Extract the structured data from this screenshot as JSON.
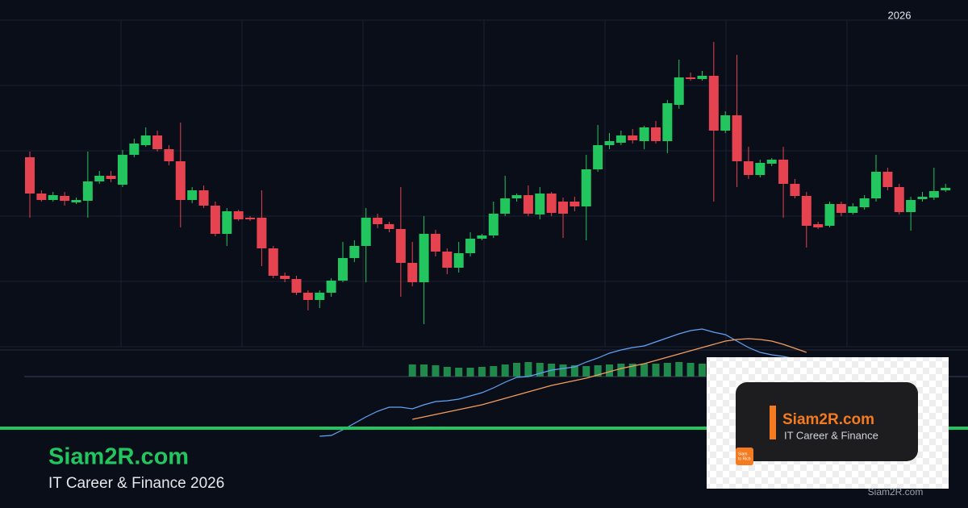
{
  "header_year": "2026",
  "chart_data": [
    {
      "type": "candlestick",
      "up_color": "#22c55e",
      "down_color": "#e5434f",
      "ylim": [
        0,
        405
      ],
      "yticks": [
        0,
        81,
        162,
        243,
        324,
        405
      ],
      "grid": true,
      "open": [
        235,
        190,
        182,
        187,
        179,
        181,
        205,
        212,
        201,
        238,
        250,
        262,
        245,
        230,
        182,
        194,
        175,
        140,
        168,
        160,
        160,
        122,
        88,
        84,
        67,
        58,
        67,
        82,
        110,
        125,
        160,
        152,
        146,
        104,
        80,
        140,
        118,
        98,
        116,
        134,
        138,
        165,
        184,
        188,
        164,
        190,
        180,
        180,
        174,
        220,
        250,
        253,
        262,
        255,
        272,
        255,
        300,
        334,
        332,
        336,
        268,
        287,
        230,
        213,
        227,
        232,
        202,
        187,
        152,
        150,
        177,
        166,
        173,
        184,
        217,
        198,
        167,
        183,
        185,
        194
      ],
      "high": [
        242,
        194,
        192,
        192,
        185,
        242,
        218,
        218,
        244,
        258,
        272,
        268,
        250,
        278,
        198,
        200,
        180,
        172,
        170,
        162,
        194,
        125,
        92,
        88,
        70,
        70,
        85,
        130,
        132,
        172,
        165,
        155,
        198,
        130,
        162,
        145,
        122,
        130,
        142,
        140,
        180,
        212,
        190,
        200,
        198,
        192,
        185,
        186,
        238,
        275,
        265,
        268,
        270,
        274,
        280,
        306,
        356,
        340,
        342,
        378,
        292,
        362,
        248,
        232,
        234,
        248,
        208,
        192,
        155,
        180,
        180,
        178,
        188,
        238,
        222,
        202,
        186,
        192,
        222,
        202
      ],
      "low": [
        160,
        180,
        180,
        175,
        177,
        160,
        202,
        204,
        198,
        235,
        248,
        242,
        225,
        148,
        178,
        172,
        137,
        125,
        156,
        156,
        100,
        85,
        80,
        64,
        45,
        48,
        62,
        80,
        105,
        80,
        147,
        142,
        62,
        75,
        28,
        112,
        90,
        92,
        112,
        132,
        135,
        162,
        180,
        162,
        158,
        162,
        135,
        168,
        132,
        217,
        245,
        250,
        252,
        245,
        252,
        240,
        295,
        330,
        330,
        180,
        265,
        198,
        208,
        210,
        224,
        160,
        184,
        123,
        146,
        148,
        162,
        164,
        170,
        180,
        194,
        164,
        144,
        180,
        182,
        192
      ],
      "close": [
        190,
        182,
        188,
        181,
        182,
        205,
        212,
        208,
        238,
        252,
        262,
        245,
        230,
        182,
        194,
        175,
        140,
        168,
        158,
        158,
        122,
        88,
        84,
        67,
        58,
        67,
        82,
        110,
        125,
        160,
        152,
        146,
        104,
        80,
        140,
        118,
        98,
        116,
        134,
        138,
        165,
        184,
        188,
        165,
        190,
        166,
        165,
        174,
        220,
        250,
        255,
        262,
        256,
        272,
        255,
        302,
        334,
        332,
        336,
        268,
        287,
        230,
        213,
        228,
        232,
        202,
        187,
        150,
        148,
        177,
        166,
        174,
        184,
        217,
        198,
        167,
        182,
        186,
        193,
        197
      ]
    },
    {
      "type": "macd",
      "ylim": [
        -80,
        65
      ],
      "yticks": [
        0
      ],
      "histogram": {
        "color": "#1f8a4c",
        "values": [
          null,
          null,
          null,
          null,
          null,
          null,
          null,
          null,
          null,
          null,
          null,
          null,
          null,
          null,
          null,
          null,
          null,
          null,
          null,
          null,
          null,
          null,
          null,
          null,
          null,
          null,
          null,
          null,
          null,
          null,
          null,
          null,
          null,
          15,
          15,
          14,
          12,
          11,
          11,
          12,
          13,
          15,
          17,
          18,
          17,
          16,
          15,
          14,
          13,
          14,
          15,
          16,
          16,
          16,
          16,
          17,
          18,
          17,
          16,
          null,
          null,
          null,
          null,
          null,
          null,
          null,
          null,
          null,
          null,
          null,
          null,
          null,
          null,
          null,
          null,
          null,
          null,
          null,
          null,
          null,
          null
        ]
      },
      "series": [
        {
          "color": "#60a5fa",
          "values": [
            null,
            null,
            null,
            null,
            null,
            null,
            null,
            null,
            null,
            null,
            null,
            null,
            null,
            null,
            null,
            null,
            null,
            null,
            null,
            null,
            null,
            null,
            null,
            null,
            null,
            -74,
            -73,
            -66,
            -58,
            -50,
            -43,
            -38,
            -38,
            -40,
            -35,
            -31,
            -30,
            -28,
            -24,
            -20,
            -14,
            -7,
            -1,
            0,
            4,
            8,
            10,
            12,
            18,
            23,
            29,
            33,
            36,
            38,
            43,
            48,
            53,
            57,
            59,
            55,
            52,
            44,
            36,
            30,
            27,
            25,
            22,
            null,
            null,
            null,
            null,
            null,
            null,
            null,
            null,
            null,
            null,
            null,
            null,
            null
          ]
        },
        {
          "color": "#f59e5b",
          "values": [
            null,
            null,
            null,
            null,
            null,
            null,
            null,
            null,
            null,
            null,
            null,
            null,
            null,
            null,
            null,
            null,
            null,
            null,
            null,
            null,
            null,
            null,
            null,
            null,
            null,
            null,
            null,
            null,
            null,
            null,
            null,
            null,
            null,
            -53,
            -50,
            -47,
            -44,
            -41,
            -38,
            -35,
            -31,
            -27,
            -23,
            -19,
            -15,
            -11,
            -8,
            -5,
            -2,
            2,
            6,
            10,
            13,
            16,
            20,
            24,
            28,
            32,
            36,
            40,
            44,
            46,
            47,
            46,
            44,
            40,
            35,
            30,
            null,
            null,
            null,
            null,
            null,
            null,
            null,
            null,
            null,
            null,
            null,
            null
          ]
        }
      ]
    }
  ],
  "footer": {
    "title": "Siam2R.com",
    "subtitle": "IT Career & Finance 2026"
  },
  "overlay": {
    "title": "Siam2R.com",
    "subtitle": "IT Career & Finance",
    "logo_line1": "Siam",
    "logo_line2": "to Rich",
    "watermark": "Siam2R.com"
  }
}
